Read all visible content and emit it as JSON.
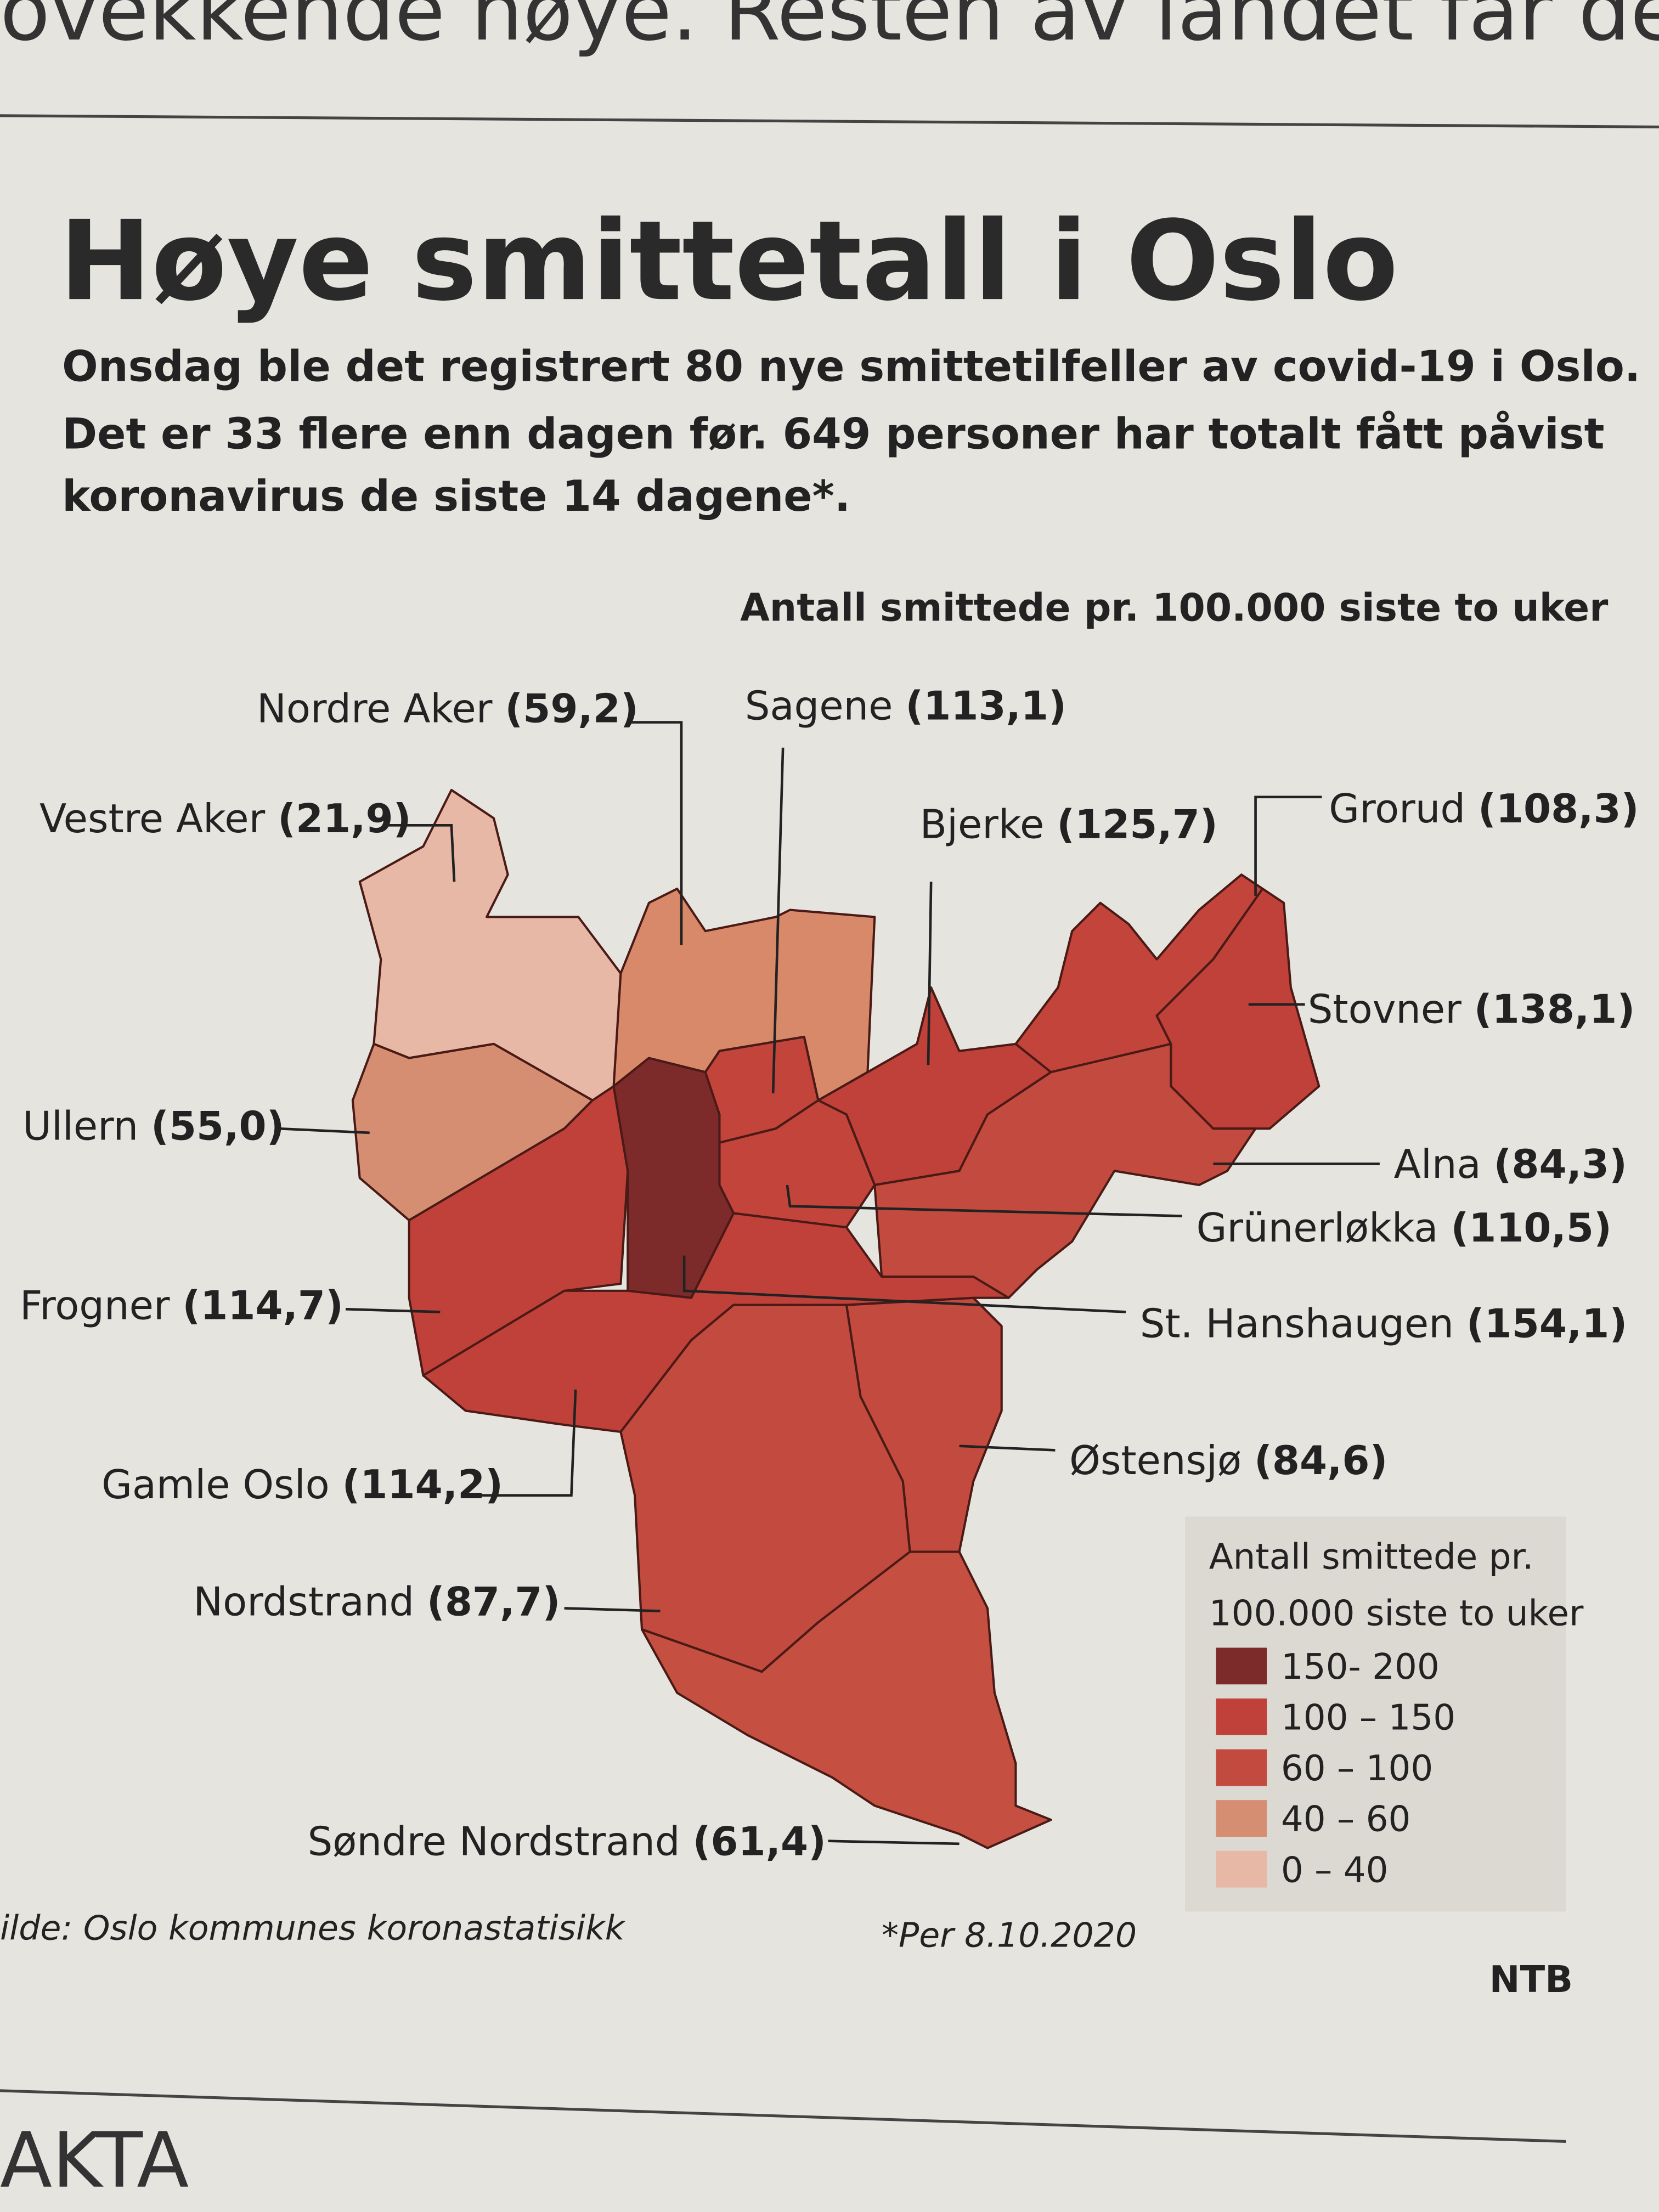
{
  "header_fragment": "ovekkende høye. Resten av landet får de",
  "title": "Høye smittetall i Oslo",
  "subtitle": [
    "Onsdag ble det registrert 80 nye smittetilfeller av covid-19 i Oslo.",
    "Det er 33 flere enn dagen før. 649 personer har totalt fått påvist",
    "koronavirus de siste 14 dagene*."
  ],
  "map": {
    "caption": "Antall smittede pr. 100.000 siste to uker",
    "districts": [
      {
        "name": "Vestre Aker",
        "value": "(21,9)",
        "color": "#e6b8a5"
      },
      {
        "name": "Nordre Aker",
        "value": "(59,2)",
        "color": "#d8896a"
      },
      {
        "name": "Sagene",
        "value": "(113,1)",
        "color": "#c2443b"
      },
      {
        "name": "Bjerke",
        "value": "(125,7)",
        "color": "#c0413a"
      },
      {
        "name": "Grorud",
        "value": "(108,3)",
        "color": "#c2443b"
      },
      {
        "name": "Stovner",
        "value": "(138,1)",
        "color": "#c0413a"
      },
      {
        "name": "Ullern",
        "value": "(55,0)",
        "color": "#d68e72"
      },
      {
        "name": "Alna",
        "value": "(84,3)",
        "color": "#c24a3e"
      },
      {
        "name": "Grünerløkka",
        "value": "(110,5)",
        "color": "#c2443b"
      },
      {
        "name": "Frogner",
        "value": "(114,7)",
        "color": "#c0413a"
      },
      {
        "name": "St. Hanshaugen",
        "value": "(154,1)",
        "color": "#7d2a2a"
      },
      {
        "name": "Østensjø",
        "value": "(84,6)",
        "color": "#c24a3e"
      },
      {
        "name": "Gamle Oslo",
        "value": "(114,2)",
        "color": "#c0413a"
      },
      {
        "name": "Nordstrand",
        "value": "(87,7)",
        "color": "#c24a3e"
      },
      {
        "name": "Søndre Nordstrand",
        "value": "(61,4)",
        "color": "#c54f40"
      }
    ],
    "legend": {
      "title": [
        "Antall smittede pr.",
        "100.000 siste to uker"
      ],
      "items": [
        {
          "label": "150- 200",
          "color": "#7d2a2a"
        },
        {
          "label": "100 – 150",
          "color": "#c0413a"
        },
        {
          "label": "60 – 100",
          "color": "#c24a3e"
        },
        {
          "label": "40 – 60",
          "color": "#d68e72"
        },
        {
          "label": "0 – 40",
          "color": "#e6b8a5"
        }
      ]
    }
  },
  "source": "ilde: Oslo kommunes koronastatisikk",
  "note": "*Per 8.10.2020",
  "credit": "NTB",
  "footer": "AKTA"
}
